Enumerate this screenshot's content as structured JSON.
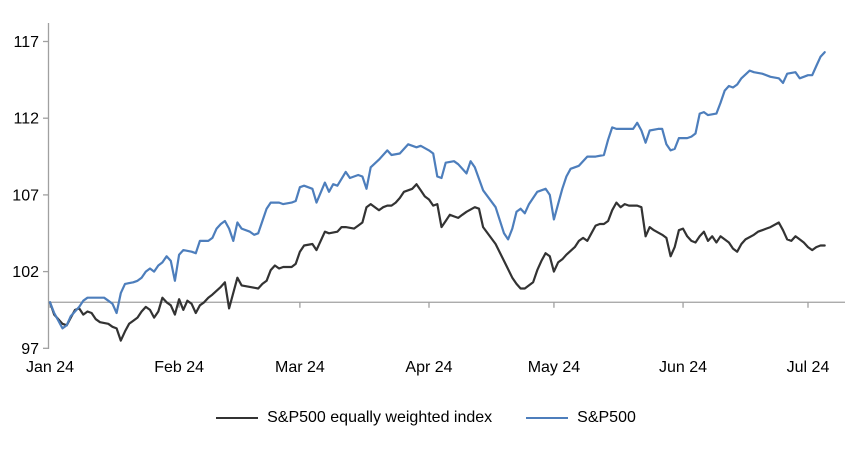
{
  "chart_data": {
    "type": "line",
    "title": "",
    "x_unit": "days since Jan 1, 2024",
    "x_axis": {
      "tick_labels": [
        "Jan 24",
        "Feb 24",
        "Mar 24",
        "Apr 24",
        "May 24",
        "Jun 24",
        "Jul 24"
      ],
      "tick_days": [
        0,
        31,
        60,
        91,
        121,
        152,
        182
      ]
    },
    "y_axis": {
      "ticks": [
        97,
        102,
        107,
        112,
        117
      ],
      "min": 97,
      "max": 117,
      "reference_line": 100
    },
    "grid": "off",
    "legend_position": "bottom-center",
    "series": [
      {
        "name": "S&P500 equally weighted index",
        "color": "#333333",
        "points": [
          [
            0,
            100
          ],
          [
            1,
            99.2
          ],
          [
            3,
            98.6
          ],
          [
            4,
            98.5
          ],
          [
            5,
            99
          ],
          [
            6,
            99.5
          ],
          [
            7,
            99.6
          ],
          [
            8,
            99.2
          ],
          [
            9,
            99.4
          ],
          [
            10,
            99.3
          ],
          [
            11,
            98.9
          ],
          [
            12,
            98.7
          ],
          [
            14,
            98.6
          ],
          [
            15,
            98.4
          ],
          [
            16,
            98.3
          ],
          [
            17,
            97.5
          ],
          [
            18,
            98.1
          ],
          [
            19,
            98.6
          ],
          [
            20,
            98.8
          ],
          [
            21,
            99
          ],
          [
            22,
            99.4
          ],
          [
            23,
            99.7
          ],
          [
            24,
            99.5
          ],
          [
            25,
            99
          ],
          [
            26,
            99.4
          ],
          [
            27,
            100.3
          ],
          [
            28,
            100
          ],
          [
            29,
            99.8
          ],
          [
            30,
            99.2
          ],
          [
            31,
            100.2
          ],
          [
            32,
            99.5
          ],
          [
            33,
            100.1
          ],
          [
            34,
            99.9
          ],
          [
            35,
            99.3
          ],
          [
            36,
            99.8
          ],
          [
            37,
            100
          ],
          [
            38,
            100.3
          ],
          [
            39,
            100.5
          ],
          [
            41,
            101
          ],
          [
            42,
            101.3
          ],
          [
            43,
            99.6
          ],
          [
            45,
            101.6
          ],
          [
            46,
            101.1
          ],
          [
            48,
            101
          ],
          [
            50,
            100.9
          ],
          [
            51,
            101.2
          ],
          [
            52,
            101.4
          ],
          [
            53,
            102.1
          ],
          [
            54,
            102.4
          ],
          [
            55,
            102.2
          ],
          [
            56,
            102.3
          ],
          [
            58,
            102.3
          ],
          [
            59,
            102.5
          ],
          [
            60,
            103.3
          ],
          [
            61,
            103.7
          ],
          [
            63,
            103.8
          ],
          [
            64,
            103.4
          ],
          [
            66,
            104.6
          ],
          [
            67,
            104.5
          ],
          [
            69,
            104.6
          ],
          [
            70,
            104.9
          ],
          [
            71,
            104.9
          ],
          [
            73,
            104.8
          ],
          [
            74,
            105
          ],
          [
            75,
            105.2
          ],
          [
            76,
            106.2
          ],
          [
            77,
            106.4
          ],
          [
            79,
            106
          ],
          [
            80,
            106.2
          ],
          [
            81,
            106.3
          ],
          [
            82,
            106.3
          ],
          [
            83,
            106.5
          ],
          [
            84,
            106.8
          ],
          [
            85,
            107.2
          ],
          [
            87,
            107.4
          ],
          [
            88,
            107.7
          ],
          [
            89,
            107.3
          ],
          [
            90,
            106.9
          ],
          [
            91,
            106.7
          ],
          [
            92,
            106.3
          ],
          [
            93,
            106.4
          ],
          [
            94,
            104.9
          ],
          [
            95,
            105.3
          ],
          [
            96,
            105.7
          ],
          [
            97,
            105.6
          ],
          [
            98,
            105.5
          ],
          [
            99,
            105.7
          ],
          [
            100,
            105.9
          ],
          [
            102,
            106.2
          ],
          [
            103,
            106.1
          ],
          [
            104,
            104.9
          ],
          [
            107,
            103.8
          ],
          [
            109,
            102.7
          ],
          [
            111,
            101.6
          ],
          [
            112,
            101.2
          ],
          [
            113,
            100.9
          ],
          [
            114,
            100.9
          ],
          [
            116,
            101.3
          ],
          [
            117,
            102.1
          ],
          [
            118,
            102.7
          ],
          [
            119,
            103.2
          ],
          [
            120,
            103
          ],
          [
            121,
            102
          ],
          [
            122,
            102.6
          ],
          [
            123,
            102.8
          ],
          [
            124,
            103.1
          ],
          [
            126,
            103.6
          ],
          [
            127,
            104
          ],
          [
            128,
            104.2
          ],
          [
            129,
            104
          ],
          [
            130,
            104.5
          ],
          [
            131,
            105
          ],
          [
            132,
            105.1
          ],
          [
            133,
            105.1
          ],
          [
            134,
            105.3
          ],
          [
            135,
            106
          ],
          [
            136,
            106.5
          ],
          [
            137,
            106.2
          ],
          [
            138,
            106.4
          ],
          [
            139,
            106.3
          ],
          [
            141,
            106.3
          ],
          [
            142,
            106.2
          ],
          [
            143,
            104.3
          ],
          [
            144,
            104.9
          ],
          [
            145,
            104.7
          ],
          [
            147,
            104.4
          ],
          [
            148,
            104.2
          ],
          [
            149,
            103
          ],
          [
            150,
            103.6
          ],
          [
            151,
            104.7
          ],
          [
            152,
            104.8
          ],
          [
            153,
            104.3
          ],
          [
            154,
            104
          ],
          [
            155,
            103.9
          ],
          [
            156,
            104.3
          ],
          [
            157,
            104.6
          ],
          [
            158,
            104
          ],
          [
            159,
            104.3
          ],
          [
            160,
            103.9
          ],
          [
            161,
            104.3
          ],
          [
            162,
            104.1
          ],
          [
            163,
            103.9
          ],
          [
            164,
            103.5
          ],
          [
            165,
            103.3
          ],
          [
            166,
            103.8
          ],
          [
            167,
            104.1
          ],
          [
            169,
            104.4
          ],
          [
            170,
            104.6
          ],
          [
            171,
            104.7
          ],
          [
            172,
            104.8
          ],
          [
            173,
            104.9
          ],
          [
            175,
            105.2
          ],
          [
            176,
            104.7
          ],
          [
            177,
            104.1
          ],
          [
            178,
            104
          ],
          [
            179,
            104.3
          ],
          [
            180,
            104.1
          ],
          [
            181,
            103.9
          ],
          [
            182,
            103.6
          ],
          [
            183,
            103.4
          ],
          [
            184,
            103.6
          ],
          [
            185,
            103.7
          ],
          [
            186,
            103.7
          ]
        ]
      },
      {
        "name": "S&P500",
        "color": "#4d7ebc",
        "points": [
          [
            0,
            100
          ],
          [
            1,
            99.3
          ],
          [
            3,
            98.3
          ],
          [
            4,
            98.5
          ],
          [
            5,
            99.1
          ],
          [
            7,
            99.7
          ],
          [
            8,
            100.1
          ],
          [
            9,
            100.3
          ],
          [
            11,
            100.3
          ],
          [
            13,
            100.3
          ],
          [
            14,
            100.1
          ],
          [
            15,
            99.9
          ],
          [
            16,
            99.3
          ],
          [
            17,
            100.6
          ],
          [
            18,
            101.2
          ],
          [
            20,
            101.3
          ],
          [
            21,
            101.4
          ],
          [
            22,
            101.6
          ],
          [
            23,
            102
          ],
          [
            24,
            102.2
          ],
          [
            25,
            102
          ],
          [
            26,
            102.4
          ],
          [
            27,
            102.6
          ],
          [
            28,
            103
          ],
          [
            29,
            102.7
          ],
          [
            30,
            101.4
          ],
          [
            31,
            103.1
          ],
          [
            32,
            103.4
          ],
          [
            34,
            103.3
          ],
          [
            35,
            103.2
          ],
          [
            36,
            104
          ],
          [
            38,
            104
          ],
          [
            39,
            104.2
          ],
          [
            40,
            104.8
          ],
          [
            41,
            105.1
          ],
          [
            42,
            105.3
          ],
          [
            43,
            104.8
          ],
          [
            44,
            104
          ],
          [
            45,
            105.2
          ],
          [
            46,
            104.8
          ],
          [
            48,
            104.6
          ],
          [
            49,
            104.4
          ],
          [
            50,
            104.5
          ],
          [
            51,
            105.3
          ],
          [
            52,
            106.1
          ],
          [
            53,
            106.5
          ],
          [
            55,
            106.5
          ],
          [
            56,
            106.4
          ],
          [
            58,
            106.5
          ],
          [
            59,
            106.6
          ],
          [
            60,
            107.5
          ],
          [
            61,
            107.6
          ],
          [
            63,
            107.4
          ],
          [
            64,
            106.5
          ],
          [
            66,
            107.8
          ],
          [
            67,
            107.2
          ],
          [
            68,
            107.7
          ],
          [
            69,
            107.6
          ],
          [
            71,
            108.5
          ],
          [
            72,
            108.1
          ],
          [
            74,
            108.3
          ],
          [
            75,
            108.2
          ],
          [
            76,
            107.4
          ],
          [
            77,
            108.8
          ],
          [
            79,
            109.3
          ],
          [
            81,
            109.9
          ],
          [
            82,
            109.6
          ],
          [
            84,
            109.7
          ],
          [
            86,
            110.3
          ],
          [
            88,
            110.1
          ],
          [
            89,
            110.2
          ],
          [
            91,
            109.9
          ],
          [
            92,
            109.7
          ],
          [
            93,
            108.2
          ],
          [
            94,
            108.1
          ],
          [
            95,
            109.1
          ],
          [
            97,
            109.2
          ],
          [
            98,
            109
          ],
          [
            100,
            108.4
          ],
          [
            101,
            109.2
          ],
          [
            102,
            108.8
          ],
          [
            104,
            107.3
          ],
          [
            107,
            106.2
          ],
          [
            109,
            104.5
          ],
          [
            110,
            104.1
          ],
          [
            111,
            104.8
          ],
          [
            112,
            105.9
          ],
          [
            113,
            106.1
          ],
          [
            114,
            105.8
          ],
          [
            115,
            106.4
          ],
          [
            117,
            107.2
          ],
          [
            119,
            107.4
          ],
          [
            120,
            107
          ],
          [
            121,
            105.4
          ],
          [
            122,
            106.4
          ],
          [
            123,
            107.4
          ],
          [
            124,
            108.2
          ],
          [
            125,
            108.7
          ],
          [
            127,
            108.9
          ],
          [
            129,
            109.5
          ],
          [
            131,
            109.5
          ],
          [
            133,
            109.6
          ],
          [
            134,
            110.6
          ],
          [
            135,
            111.4
          ],
          [
            136,
            111.3
          ],
          [
            138,
            111.3
          ],
          [
            140,
            111.3
          ],
          [
            141,
            111.7
          ],
          [
            142,
            111.2
          ],
          [
            143,
            110.4
          ],
          [
            144,
            111.2
          ],
          [
            146,
            111.3
          ],
          [
            147,
            111.3
          ],
          [
            148,
            110.3
          ],
          [
            149,
            109.9
          ],
          [
            150,
            110
          ],
          [
            151,
            110.7
          ],
          [
            153,
            110.7
          ],
          [
            154,
            110.8
          ],
          [
            155,
            111
          ],
          [
            156,
            112.3
          ],
          [
            157,
            112.4
          ],
          [
            158,
            112.2
          ],
          [
            160,
            112.3
          ],
          [
            161,
            113
          ],
          [
            162,
            113.8
          ],
          [
            163,
            114.1
          ],
          [
            164,
            114
          ],
          [
            165,
            114.2
          ],
          [
            166,
            114.6
          ],
          [
            168,
            115.1
          ],
          [
            169,
            115
          ],
          [
            171,
            114.9
          ],
          [
            173,
            114.7
          ],
          [
            175,
            114.6
          ],
          [
            176,
            114.3
          ],
          [
            177,
            114.9
          ],
          [
            179,
            115
          ],
          [
            180,
            114.6
          ],
          [
            181,
            114.7
          ],
          [
            182,
            114.8
          ],
          [
            183,
            114.8
          ],
          [
            184,
            115.4
          ],
          [
            185,
            116
          ],
          [
            186,
            116.3
          ]
        ]
      }
    ]
  },
  "colors": {
    "axis": "#a0a0a0",
    "reference_line": "#a0a0a0",
    "label_text": "#000000",
    "background": "#ffffff"
  }
}
